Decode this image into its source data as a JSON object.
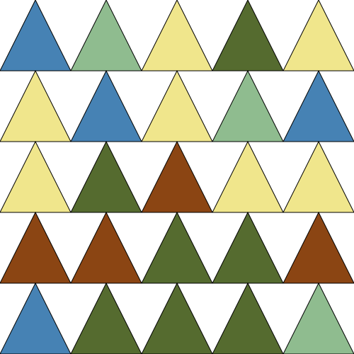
{
  "palette": {
    "blue": "#4682b4",
    "sage": "#8fbc8f",
    "yellow": "#f0e68c",
    "olive": "#556b2f",
    "brown": "#8b4513",
    "outline": "#000000",
    "background": "#ffffff"
  },
  "grid": {
    "rows": 5,
    "cols": 5,
    "cells": [
      [
        "blue",
        "sage",
        "yellow",
        "olive",
        "yellow"
      ],
      [
        "yellow",
        "blue",
        "yellow",
        "sage",
        "blue"
      ],
      [
        "yellow",
        "olive",
        "brown",
        "yellow",
        "yellow"
      ],
      [
        "brown",
        "brown",
        "olive",
        "olive",
        "brown"
      ],
      [
        "blue",
        "olive",
        "olive",
        "olive",
        "sage"
      ]
    ]
  }
}
